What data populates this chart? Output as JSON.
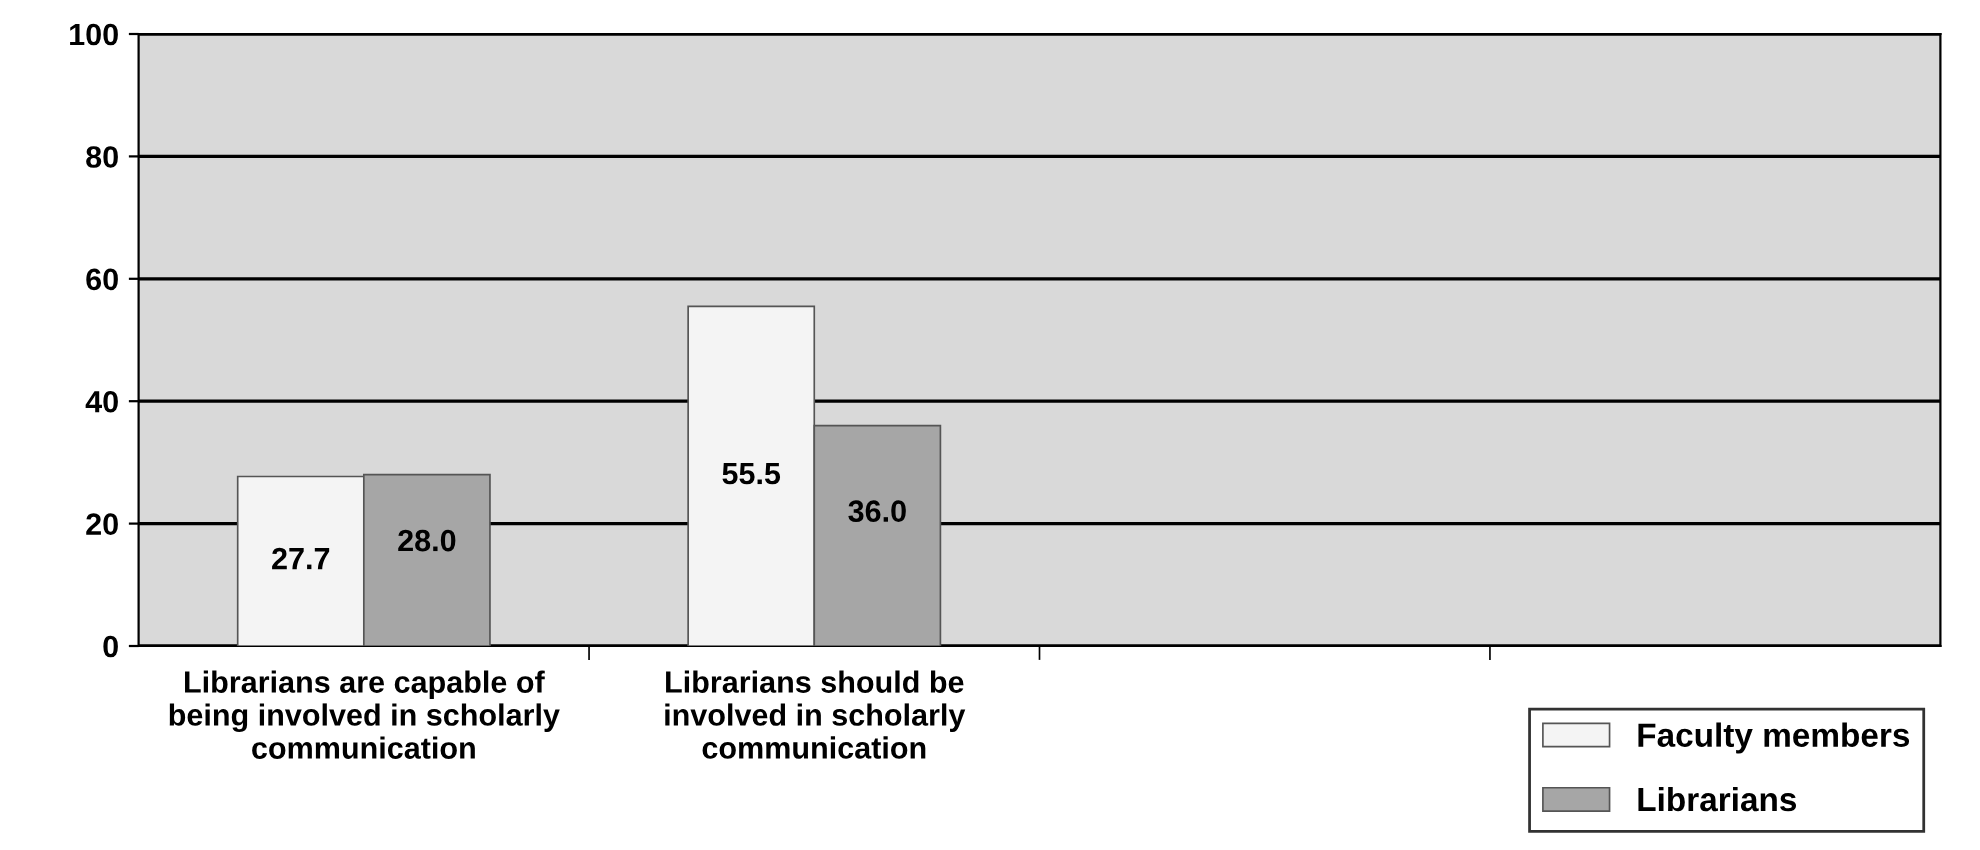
{
  "chart_data": {
    "type": "bar",
    "categories": [
      "Librarians are capable of being involved in scholarly communication",
      "Librarians should be involved in scholarly communication",
      null,
      null
    ],
    "series": [
      {
        "name": "Faculty members",
        "color": "#f4f4f4",
        "values": [
          27.7,
          55.5,
          null,
          null
        ],
        "value_labels": [
          "27.7",
          "55.5",
          null,
          null
        ]
      },
      {
        "name": "Librarians",
        "color": "#a6a6a6",
        "values": [
          28.0,
          36.0,
          null,
          null
        ],
        "value_labels": [
          "28.0",
          "36.0",
          null,
          null
        ]
      }
    ],
    "ylim": [
      0,
      100
    ],
    "yticks": [
      0,
      20,
      40,
      60,
      80,
      100
    ],
    "grid": "y",
    "legend": "bottom right"
  }
}
